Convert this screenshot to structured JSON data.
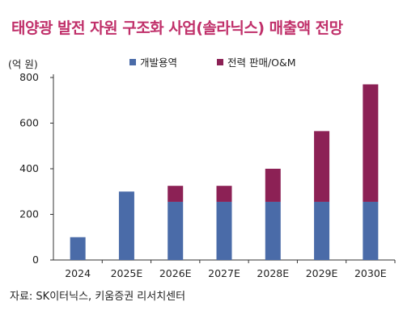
{
  "title": "태양광 발전 자원 구조화 사업(솔라닉스) 매출액 전망",
  "unit_label": "(억 원)",
  "source": "자료: SK이터닉스, 키움증권 리서치센터",
  "colors": {
    "title": "#C0306A",
    "dev": "#4A6BA8",
    "power": "#8C2155"
  },
  "chart_data": {
    "type": "bar",
    "stacked": true,
    "categories": [
      "2024",
      "2025E",
      "2026E",
      "2027E",
      "2028E",
      "2029E",
      "2030E"
    ],
    "series": [
      {
        "name": "개발용역",
        "values": [
          100,
          300,
          255,
          255,
          255,
          255,
          255
        ]
      },
      {
        "name": "전력 판매/O&M",
        "values": [
          0,
          0,
          70,
          70,
          145,
          310,
          515
        ]
      }
    ],
    "ylim": [
      0,
      800
    ],
    "yticks": [
      0,
      200,
      400,
      600,
      800
    ],
    "legend_position": "top",
    "grid": false
  }
}
